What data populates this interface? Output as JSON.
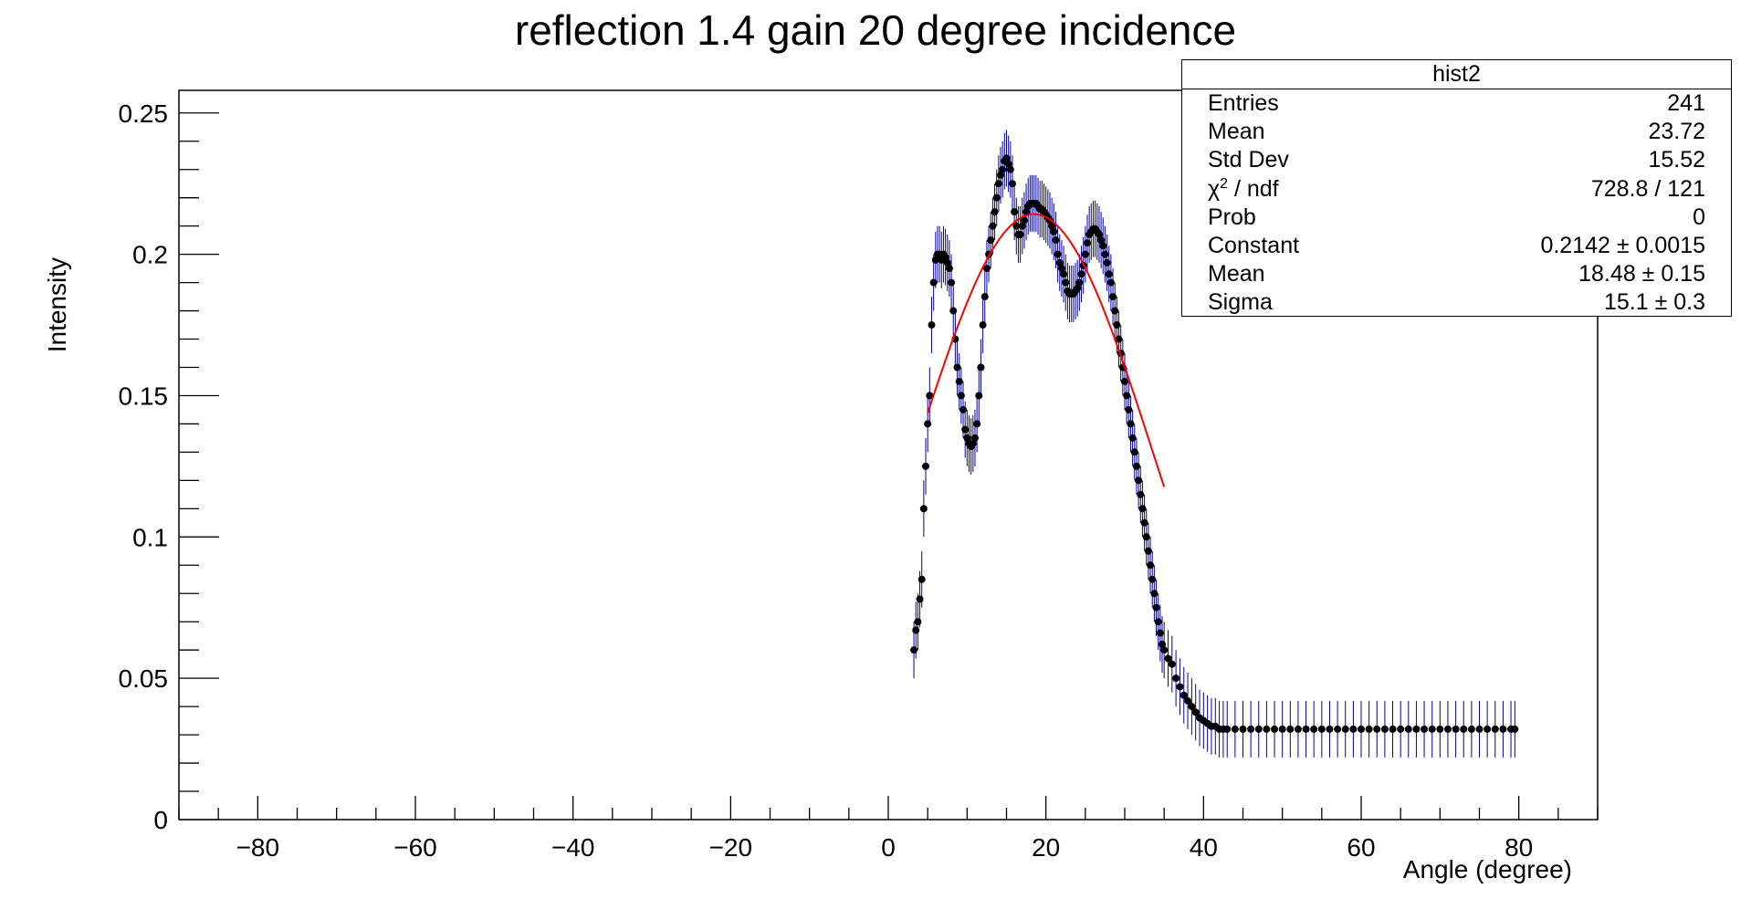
{
  "chart_data": {
    "type": "scatter",
    "title": "reflection 1.4 gain 20 degree incidence",
    "xlabel": "Angle (degree)",
    "ylabel": "Intensity",
    "xlim": [
      -90,
      90
    ],
    "ylim": [
      0,
      0.258
    ],
    "xticks": [
      -80,
      -60,
      -40,
      -20,
      0,
      20,
      40,
      60,
      80
    ],
    "xtick_labels": [
      "−80",
      "−60",
      "−40",
      "−20",
      "0",
      "20",
      "40",
      "60",
      "80"
    ],
    "yticks": [
      0,
      0.05,
      0.1,
      0.15,
      0.2,
      0.25
    ],
    "ytick_labels": [
      "0",
      "0.05",
      "0.1",
      "0.15",
      "0.2",
      "0.25"
    ],
    "marker_color": "#000000",
    "errorbar_color": "#0000aa",
    "fit_color": "#ff0000",
    "series": [
      {
        "points": [
          [
            3.25,
            0.06
          ],
          [
            3.5,
            0.067
          ],
          [
            3.75,
            0.07
          ],
          [
            4.0,
            0.078
          ],
          [
            4.25,
            0.085
          ],
          [
            4.5,
            0.11
          ],
          [
            4.75,
            0.125
          ],
          [
            5.0,
            0.14
          ],
          [
            5.25,
            0.15
          ],
          [
            5.5,
            0.175
          ],
          [
            5.75,
            0.19
          ],
          [
            6.0,
            0.198
          ],
          [
            6.25,
            0.2
          ],
          [
            6.5,
            0.2
          ],
          [
            6.75,
            0.198
          ],
          [
            7.0,
            0.2
          ],
          [
            7.25,
            0.199
          ],
          [
            7.5,
            0.197
          ],
          [
            7.75,
            0.195
          ],
          [
            8.0,
            0.19
          ],
          [
            8.25,
            0.18
          ],
          [
            8.5,
            0.17
          ],
          [
            8.75,
            0.16
          ],
          [
            9.0,
            0.155
          ],
          [
            9.25,
            0.15
          ],
          [
            9.5,
            0.145
          ],
          [
            9.75,
            0.138
          ],
          [
            10.0,
            0.135
          ],
          [
            10.25,
            0.133
          ],
          [
            10.5,
            0.132
          ],
          [
            10.75,
            0.133
          ],
          [
            11.0,
            0.135
          ],
          [
            11.25,
            0.14
          ],
          [
            11.5,
            0.15
          ],
          [
            11.75,
            0.16
          ],
          [
            12.0,
            0.175
          ],
          [
            12.25,
            0.185
          ],
          [
            12.5,
            0.195
          ],
          [
            12.75,
            0.2
          ],
          [
            13.0,
            0.205
          ],
          [
            13.25,
            0.21
          ],
          [
            13.5,
            0.215
          ],
          [
            13.75,
            0.22
          ],
          [
            14.0,
            0.225
          ],
          [
            14.25,
            0.228
          ],
          [
            14.5,
            0.23
          ],
          [
            14.75,
            0.233
          ],
          [
            15.0,
            0.234
          ],
          [
            15.25,
            0.232
          ],
          [
            15.5,
            0.23
          ],
          [
            15.75,
            0.225
          ],
          [
            16.0,
            0.215
          ],
          [
            16.25,
            0.21
          ],
          [
            16.5,
            0.207
          ],
          [
            16.75,
            0.207
          ],
          [
            17.0,
            0.21
          ],
          [
            17.25,
            0.212
          ],
          [
            17.5,
            0.215
          ],
          [
            17.75,
            0.217
          ],
          [
            18.0,
            0.218
          ],
          [
            18.25,
            0.218
          ],
          [
            18.5,
            0.218
          ],
          [
            18.75,
            0.218
          ],
          [
            19.0,
            0.217
          ],
          [
            19.25,
            0.216
          ],
          [
            19.5,
            0.216
          ],
          [
            19.75,
            0.215
          ],
          [
            20.0,
            0.214
          ],
          [
            20.25,
            0.213
          ],
          [
            20.5,
            0.212
          ],
          [
            20.75,
            0.21
          ],
          [
            21.0,
            0.208
          ],
          [
            21.25,
            0.205
          ],
          [
            21.5,
            0.2
          ],
          [
            21.75,
            0.197
          ],
          [
            22.0,
            0.195
          ],
          [
            22.25,
            0.193
          ],
          [
            22.5,
            0.19
          ],
          [
            22.75,
            0.187
          ],
          [
            23.0,
            0.186
          ],
          [
            23.25,
            0.186
          ],
          [
            23.5,
            0.186
          ],
          [
            23.75,
            0.187
          ],
          [
            24.0,
            0.188
          ],
          [
            24.25,
            0.19
          ],
          [
            24.5,
            0.193
          ],
          [
            24.75,
            0.196
          ],
          [
            25.0,
            0.2
          ],
          [
            25.25,
            0.204
          ],
          [
            25.5,
            0.207
          ],
          [
            25.75,
            0.208
          ],
          [
            26.0,
            0.209
          ],
          [
            26.25,
            0.209
          ],
          [
            26.5,
            0.208
          ],
          [
            26.75,
            0.207
          ],
          [
            27.0,
            0.205
          ],
          [
            27.25,
            0.203
          ],
          [
            27.5,
            0.2
          ],
          [
            27.75,
            0.197
          ],
          [
            28.0,
            0.193
          ],
          [
            28.25,
            0.19
          ],
          [
            28.5,
            0.185
          ],
          [
            28.75,
            0.18
          ],
          [
            29.0,
            0.175
          ],
          [
            29.25,
            0.17
          ],
          [
            29.5,
            0.165
          ],
          [
            29.75,
            0.16
          ],
          [
            30.0,
            0.155
          ],
          [
            30.25,
            0.15
          ],
          [
            30.5,
            0.145
          ],
          [
            30.75,
            0.14
          ],
          [
            31.0,
            0.135
          ],
          [
            31.25,
            0.13
          ],
          [
            31.5,
            0.125
          ],
          [
            31.75,
            0.12
          ],
          [
            32.0,
            0.115
          ],
          [
            32.25,
            0.11
          ],
          [
            32.5,
            0.105
          ],
          [
            32.75,
            0.1
          ],
          [
            33.0,
            0.095
          ],
          [
            33.25,
            0.09
          ],
          [
            33.5,
            0.085
          ],
          [
            33.75,
            0.08
          ],
          [
            34.0,
            0.075
          ],
          [
            34.25,
            0.07
          ],
          [
            34.5,
            0.066
          ],
          [
            34.75,
            0.062
          ],
          [
            35.0,
            0.06
          ],
          [
            35.5,
            0.057
          ],
          [
            36.0,
            0.055
          ],
          [
            36.5,
            0.05
          ],
          [
            37.0,
            0.047
          ],
          [
            37.5,
            0.044
          ],
          [
            38.0,
            0.042
          ],
          [
            38.5,
            0.04
          ],
          [
            39.0,
            0.038
          ],
          [
            39.5,
            0.036
          ],
          [
            40.0,
            0.035
          ],
          [
            40.5,
            0.034
          ],
          [
            41.0,
            0.033
          ],
          [
            41.5,
            0.033
          ],
          [
            42.0,
            0.032
          ],
          [
            42.5,
            0.032
          ],
          [
            43.0,
            0.032
          ],
          [
            44.0,
            0.032
          ],
          [
            45.0,
            0.032
          ],
          [
            46.0,
            0.032
          ],
          [
            47.0,
            0.032
          ],
          [
            48.0,
            0.032
          ],
          [
            49.0,
            0.032
          ],
          [
            50.0,
            0.032
          ],
          [
            51.0,
            0.032
          ],
          [
            52.0,
            0.032
          ],
          [
            53.0,
            0.032
          ],
          [
            54.0,
            0.032
          ],
          [
            55.0,
            0.032
          ],
          [
            56.0,
            0.032
          ],
          [
            57.0,
            0.032
          ],
          [
            58.0,
            0.032
          ],
          [
            59.0,
            0.032
          ],
          [
            60.0,
            0.032
          ],
          [
            61.0,
            0.032
          ],
          [
            62.0,
            0.032
          ],
          [
            63.0,
            0.032
          ],
          [
            64.0,
            0.032
          ],
          [
            65.0,
            0.032
          ],
          [
            66.0,
            0.032
          ],
          [
            67.0,
            0.032
          ],
          [
            68.0,
            0.032
          ],
          [
            69.0,
            0.032
          ],
          [
            70.0,
            0.032
          ],
          [
            71.0,
            0.032
          ],
          [
            72.0,
            0.032
          ],
          [
            73.0,
            0.032
          ],
          [
            74.0,
            0.032
          ],
          [
            75.0,
            0.032
          ],
          [
            76.0,
            0.032
          ],
          [
            77.0,
            0.032
          ],
          [
            78.0,
            0.032
          ],
          [
            79.0,
            0.032
          ],
          [
            79.5,
            0.032
          ]
        ],
        "error": 0.01
      }
    ],
    "fit": {
      "function": "gaus",
      "constant": 0.2142,
      "mean": 18.48,
      "sigma": 15.1,
      "x_range": [
        5,
        35
      ]
    },
    "stats": {
      "name": "hist2",
      "rows": [
        {
          "key": "Entries",
          "value": "241"
        },
        {
          "key": "Mean",
          "value": "23.72"
        },
        {
          "key": "Std Dev",
          "value": "15.52"
        },
        {
          "key": "χ",
          "sup": "2",
          "key_suffix": " / ndf",
          "value": "728.8 / 121"
        },
        {
          "key": "Prob",
          "value": "0"
        },
        {
          "key": "Constant",
          "value": "0.2142 ± 0.0015"
        },
        {
          "key": "Mean",
          "value": "18.48 ± 0.15"
        },
        {
          "key": "Sigma",
          "value": "15.1 ± 0.3"
        }
      ]
    }
  }
}
